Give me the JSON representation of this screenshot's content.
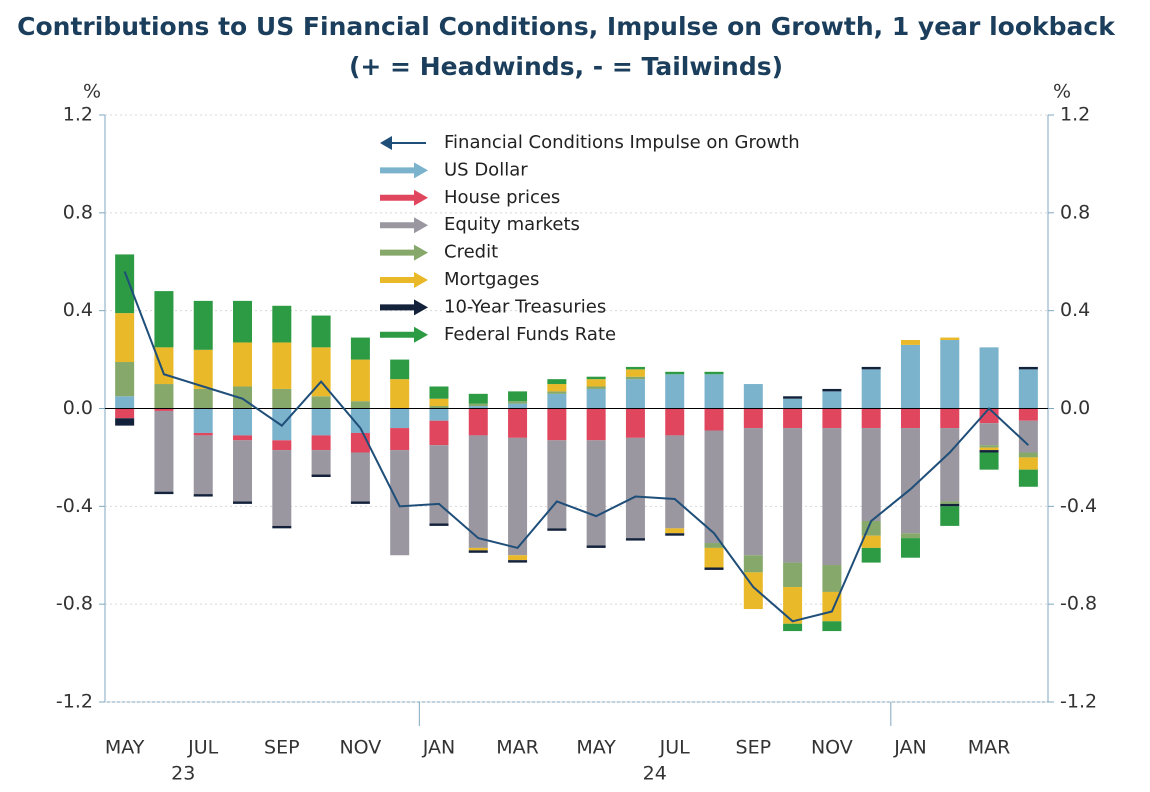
{
  "chart_data": {
    "type": "bar",
    "title": "Contributions to US Financial Conditions, Impulse on Growth, 1 year lookback",
    "subtitle": "(+ = Headwinds, - = Tailwinds)",
    "y_unit": "%",
    "y2_unit": "%",
    "categories": [
      "MAY",
      null,
      "JUL",
      null,
      "SEP",
      null,
      "NOV",
      null,
      "JAN",
      null,
      "MAR",
      null,
      "MAY",
      null,
      "JUL",
      null,
      "SEP",
      null,
      "NOV",
      null,
      "JAN",
      null,
      "MAR",
      null
    ],
    "years": [
      null,
      null,
      "23",
      null,
      null,
      null,
      null,
      null,
      null,
      null,
      null,
      null,
      null,
      null,
      "24",
      null,
      null,
      null,
      null,
      null,
      null,
      null,
      null,
      null
    ],
    "ylim": [
      -1.2,
      1.2
    ],
    "yticks": [
      -1.2,
      -0.8,
      -0.4,
      {
        "value": 0,
        "label": "0.0"
      },
      0.4,
      0.8,
      1.2
    ],
    "grid": true,
    "line_series": {
      "name": "Financial Conditions Impulse on Growth",
      "color": "#1f4e79",
      "values": [
        0.56,
        0.14,
        0.09,
        0.04,
        -0.07,
        0.11,
        -0.08,
        -0.4,
        -0.39,
        -0.53,
        -0.57,
        -0.38,
        -0.44,
        -0.36,
        -0.37,
        -0.51,
        -0.73,
        -0.87,
        -0.83,
        -0.46,
        -0.33,
        -0.18,
        0.0,
        -0.15
      ]
    },
    "series": [
      {
        "name": "US Dollar",
        "color": "#7bb3cc",
        "values": [
          0.05,
          0,
          -0.1,
          -0.11,
          -0.13,
          -0.11,
          -0.1,
          -0.08,
          -0.05,
          0.01,
          0.02,
          0.06,
          0.08,
          0.12,
          0.14,
          0.14,
          0.1,
          0.04,
          0.07,
          0.16,
          0.26,
          0.28,
          0.25,
          0.16
        ]
      },
      {
        "name": "House prices",
        "color": "#e0475f",
        "values": [
          -0.04,
          -0.01,
          -0.01,
          -0.02,
          -0.04,
          -0.06,
          -0.08,
          -0.09,
          -0.1,
          -0.11,
          -0.12,
          -0.13,
          -0.13,
          -0.12,
          -0.11,
          -0.09,
          -0.08,
          -0.08,
          -0.08,
          -0.08,
          -0.08,
          -0.08,
          -0.06,
          -0.05
        ]
      },
      {
        "name": "Equity markets",
        "color": "#9a97a0",
        "values": [
          0,
          -0.33,
          -0.24,
          -0.25,
          -0.31,
          -0.1,
          -0.2,
          -0.43,
          -0.32,
          -0.46,
          -0.48,
          -0.36,
          -0.43,
          -0.41,
          -0.38,
          -0.46,
          -0.52,
          -0.55,
          -0.56,
          -0.38,
          -0.43,
          -0.3,
          -0.09,
          -0.13
        ]
      },
      {
        "name": "Credit",
        "color": "#86a86b",
        "values": [
          0.14,
          0.1,
          0.08,
          0.09,
          0.08,
          0.05,
          0.03,
          0,
          0.01,
          0.01,
          0.01,
          0.01,
          0.01,
          0.01,
          0,
          -0.02,
          -0.07,
          -0.1,
          -0.11,
          -0.06,
          -0.02,
          -0.01,
          -0.01,
          -0.02
        ]
      },
      {
        "name": "Mortgages",
        "color": "#e9b92a",
        "values": [
          0.2,
          0.15,
          0.16,
          0.18,
          0.19,
          0.2,
          0.17,
          0.12,
          0.03,
          -0.01,
          -0.02,
          0.03,
          0.03,
          0.03,
          -0.02,
          -0.08,
          -0.15,
          -0.15,
          -0.12,
          -0.05,
          0.02,
          0.01,
          -0.01,
          -0.05
        ]
      },
      {
        "name": "10-Year Treasuries",
        "color": "#13213b",
        "values": [
          -0.03,
          -0.01,
          -0.01,
          -0.01,
          -0.01,
          -0.01,
          -0.01,
          0,
          -0.01,
          -0.01,
          -0.01,
          -0.01,
          -0.01,
          -0.01,
          -0.01,
          -0.01,
          0,
          0.01,
          0.01,
          0.01,
          0,
          -0.01,
          -0.01,
          0.01
        ]
      },
      {
        "name": "Federal Funds Rate",
        "color": "#2d9a44",
        "values": [
          0.24,
          0.23,
          0.2,
          0.17,
          0.15,
          0.13,
          0.09,
          0.08,
          0.05,
          0.04,
          0.04,
          0.02,
          0.01,
          0.01,
          0.01,
          0.01,
          0,
          -0.03,
          -0.04,
          -0.06,
          -0.08,
          -0.08,
          -0.07,
          -0.07
        ]
      }
    ]
  }
}
